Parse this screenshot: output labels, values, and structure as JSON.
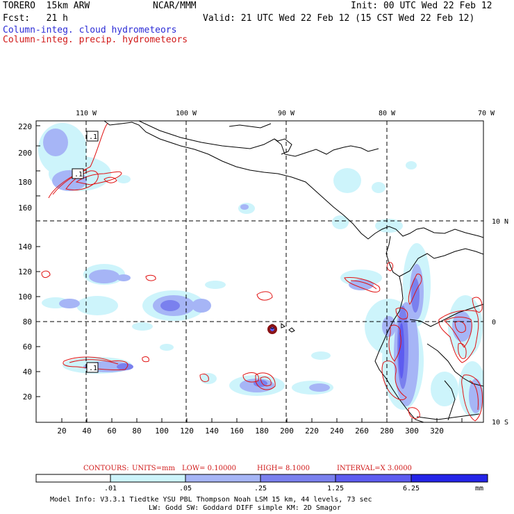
{
  "header": {
    "model": "TORERO  15km ARW",
    "org": "NCAR/MMM",
    "init": "Init: 00 UTC Wed 22 Feb 12",
    "fcst": "Fcst:   21 h",
    "valid": "Valid: 21 UTC Wed 22 Feb 12 (15 CST Wed 22 Feb 12)",
    "field1": "Column-integ. cloud hydrometeors",
    "field2": "Column-integ. precip. hydrometeors"
  },
  "colors": {
    "cloud_light": "#cdf4fb",
    "cloud_mid": "#a6b5f6",
    "cloud_dark": "#7a80ee",
    "cloud_darker": "#5d5cf0",
    "precip_contour": "#e01010",
    "field1_text": "#2b2bd6",
    "field2_text": "#d01818"
  },
  "axes": {
    "x_ticks": [
      "20",
      "40",
      "60",
      "80",
      "100",
      "120",
      "140",
      "160",
      "180",
      "200",
      "220",
      "240",
      "260",
      "280",
      "300",
      "320"
    ],
    "y_ticks": [
      "20",
      "40",
      "60",
      "80",
      "100",
      "120",
      "140",
      "160",
      "180",
      "200",
      "220"
    ],
    "lon_labels": [
      "110 W",
      "100 W",
      "90 W",
      "80 W",
      "70 W"
    ],
    "lat_labels": [
      "10 N",
      "0",
      "10 S"
    ]
  },
  "contour_labels": [
    ".1",
    ".1",
    ".1"
  ],
  "contour_info": {
    "contours": "CONTOURS:",
    "units": "UNITS=mm",
    "low": "LOW= 0.10000",
    "high": "HIGH=  8.1000",
    "interval": "INTERVAL=X  3.0000"
  },
  "colorbar": {
    "labels": [
      ".01",
      ".05",
      ".25",
      "1.25",
      "6.25"
    ],
    "unit": "mm"
  },
  "footer": {
    "line1": "Model Info: V3.3.1   Tiedtke YSU PBL  Thompson    Noah LSM  15 km,   44 levels,   73 sec",
    "line2": "LW: Godd SW: Goddard DIFF  simple KM: 2D Smagor"
  }
}
